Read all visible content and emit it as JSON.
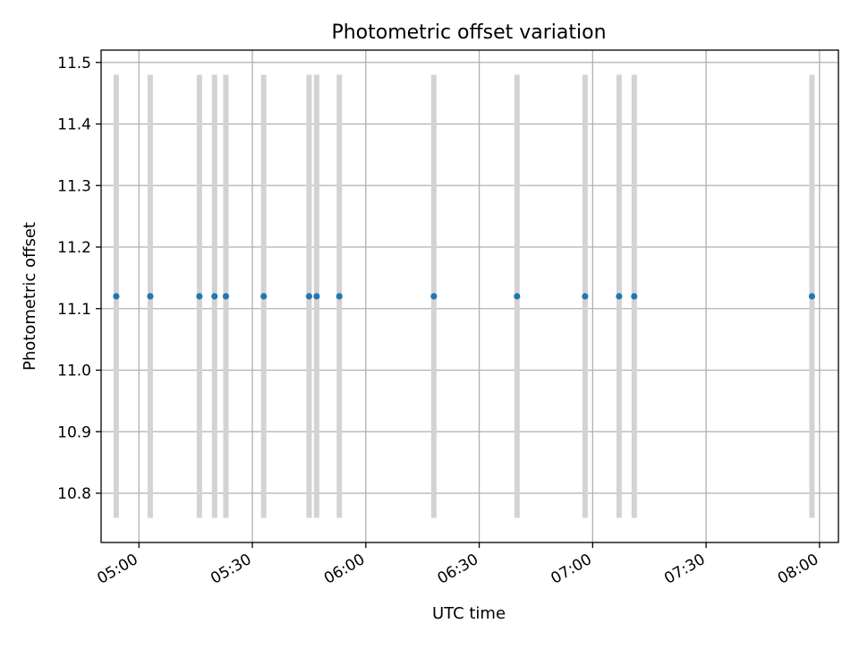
{
  "chart_data": {
    "type": "scatter",
    "title": "Photometric offset variation",
    "xlabel": "UTC time",
    "ylabel": "Photometric offset",
    "xlim": [
      "04:50",
      "08:05"
    ],
    "ylim": [
      10.72,
      11.52
    ],
    "xticks": [
      "05:00",
      "05:30",
      "06:00",
      "06:30",
      "07:00",
      "07:30",
      "08:00"
    ],
    "yticks": [
      10.8,
      10.9,
      11.0,
      11.1,
      11.2,
      11.3,
      11.4,
      11.5
    ],
    "grid": true,
    "error_range": [
      10.76,
      11.48
    ],
    "x": [
      "04:54",
      "05:03",
      "05:16",
      "05:20",
      "05:23",
      "05:33",
      "05:45",
      "05:47",
      "05:53",
      "06:18",
      "06:40",
      "06:58",
      "07:07",
      "07:11",
      "07:58"
    ],
    "y": [
      11.12,
      11.12,
      11.12,
      11.12,
      11.12,
      11.12,
      11.12,
      11.12,
      11.12,
      11.12,
      11.12,
      11.12,
      11.12,
      11.12,
      11.12
    ],
    "colors": {
      "points": "#1f77b4",
      "error_bars": "#d3d3d3",
      "grid": "#b0b0b0",
      "axes": "#000000"
    }
  }
}
